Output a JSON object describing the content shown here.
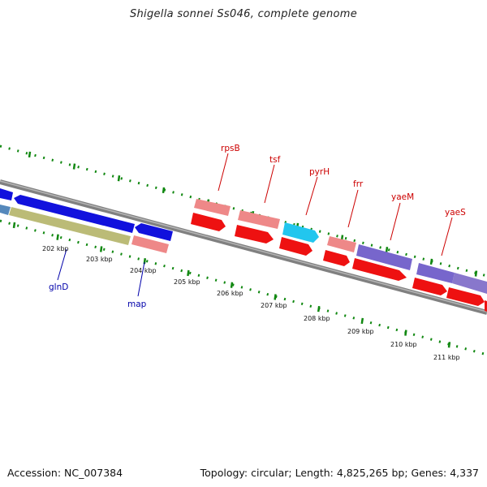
{
  "title": "Shigella sonnei Ss046, complete genome",
  "footer": {
    "accession": "Accession: NC_007384",
    "topology": "Topology: circular; Length: 4,825,265 bp; Genes: 4,337"
  },
  "colors": {
    "gene_forward": "#ee1111",
    "gene_forward_pink": "#ee8888",
    "gene_cyan": "#22c6ee",
    "gene_purple": "#7766cc",
    "gene_blue": "#1111dd",
    "gene_olive": "#bbbb77",
    "backbone": "#808080",
    "ticks": "#118811",
    "label_forward": "#cc0000",
    "label_reverse": "#0000aa"
  },
  "ruler": {
    "labels": [
      "202 kbp",
      "203 kbp",
      "204 kbp",
      "205 kbp",
      "206 kbp",
      "207 kbp",
      "208 kbp",
      "209 kbp",
      "210 kbp",
      "211 kbp"
    ]
  },
  "gene_labels": {
    "forward": [
      "rpsB",
      "tsf",
      "pyrH",
      "frr",
      "yaeM",
      "yaeS"
    ],
    "reverse": [
      "glnD",
      "map"
    ]
  }
}
